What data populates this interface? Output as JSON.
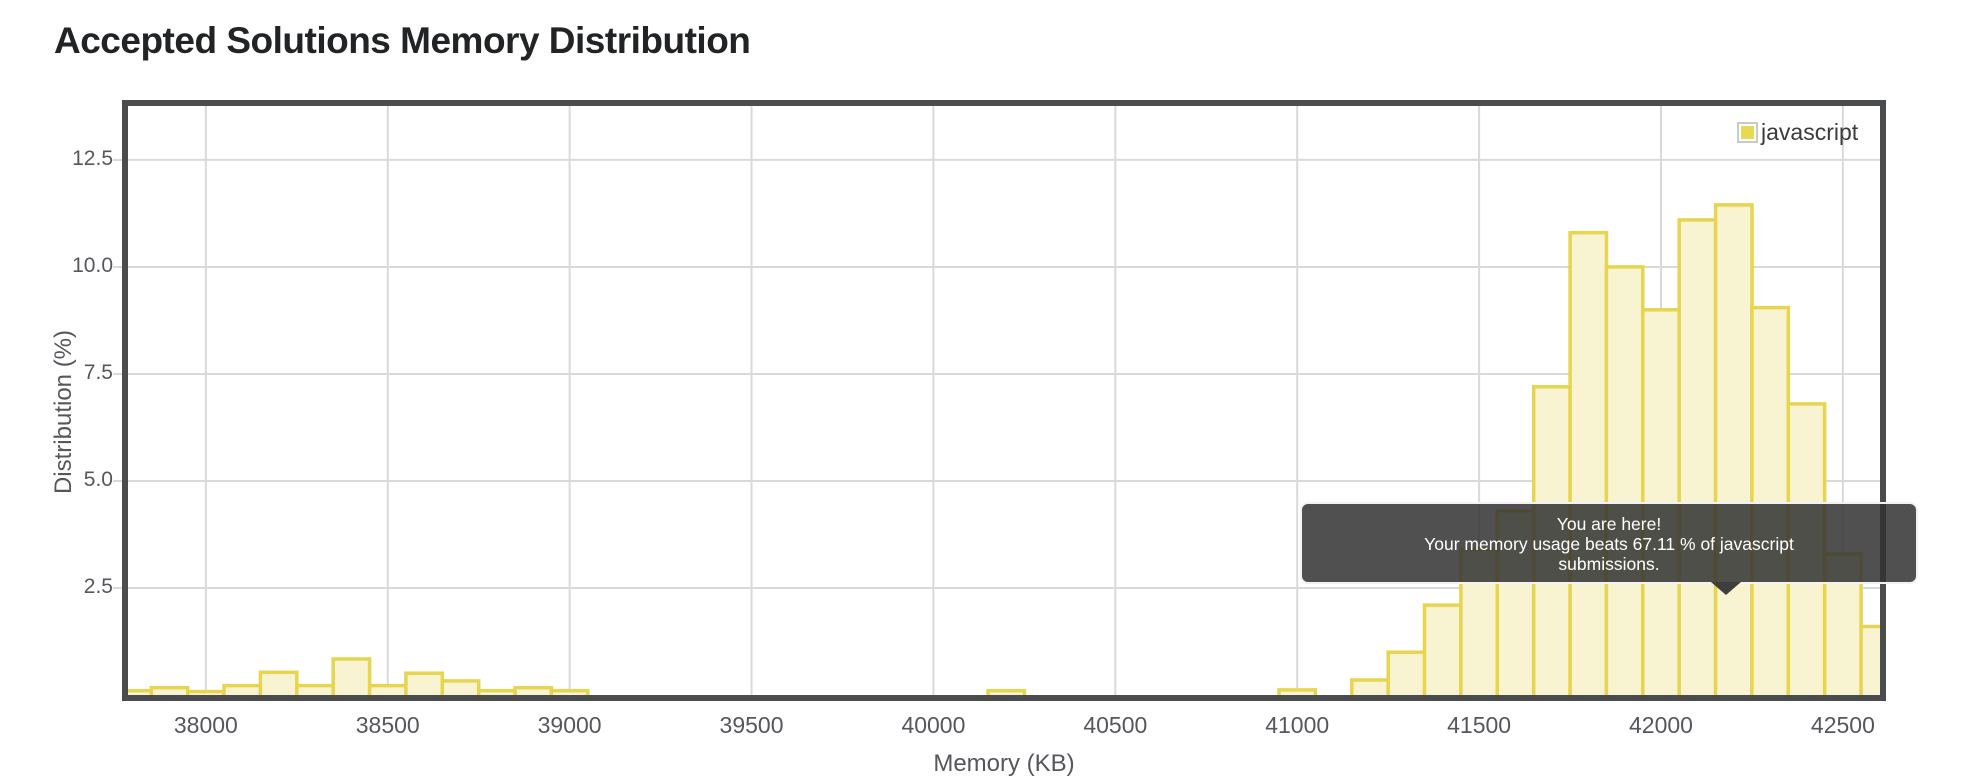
{
  "header": {
    "title": "Accepted Solutions Memory Distribution"
  },
  "legend": {
    "label": "javascript"
  },
  "tooltip": {
    "lines": [
      "You are here!",
      "Your memory usage beats 67.11 % of javascript",
      "submissions."
    ],
    "beats_percent": 67.11,
    "language": "javascript"
  },
  "colors": {
    "title_text": "#212325",
    "tick_text": "#56575b",
    "grid": "#d9d9d9",
    "axis_border": "#4b4c4e",
    "bar_fill": "#f8f4d1",
    "bar_stroke": "#e7d44f",
    "legend_swatch": "#e8d955",
    "tooltip_bg": "rgba(49,49,49,0.85)",
    "tooltip_text": "#ffffff"
  },
  "chart_data": {
    "type": "bar",
    "title": "Accepted Solutions Memory Distribution",
    "xlabel": "Memory (KB)",
    "ylabel": "Distribution (%)",
    "legend": [
      "javascript"
    ],
    "legend_position": "top-right",
    "grid": true,
    "bin_width_kb": 100,
    "x_domain": [
      37786,
      42602
    ],
    "ylim": [
      0,
      13.76
    ],
    "x_ticks": [
      38000,
      38500,
      39000,
      39500,
      40000,
      40500,
      41000,
      41500,
      42000,
      42500
    ],
    "y_ticks": [
      2.5,
      5.0,
      7.5,
      10.0,
      12.5
    ],
    "y_tick_labels": [
      "2.5",
      "5.0",
      "7.5",
      "10.0",
      "12.5"
    ],
    "series": [
      {
        "name": "javascript",
        "bins": [
          {
            "memory_kb": 37800,
            "pct": 0.1
          },
          {
            "memory_kb": 37900,
            "pct": 0.17
          },
          {
            "memory_kb": 38000,
            "pct": 0.08
          },
          {
            "memory_kb": 38100,
            "pct": 0.22
          },
          {
            "memory_kb": 38200,
            "pct": 0.53
          },
          {
            "memory_kb": 38300,
            "pct": 0.22
          },
          {
            "memory_kb": 38400,
            "pct": 0.84
          },
          {
            "memory_kb": 38500,
            "pct": 0.22
          },
          {
            "memory_kb": 38600,
            "pct": 0.51
          },
          {
            "memory_kb": 38700,
            "pct": 0.33
          },
          {
            "memory_kb": 38800,
            "pct": 0.1
          },
          {
            "memory_kb": 38900,
            "pct": 0.17
          },
          {
            "memory_kb": 39000,
            "pct": 0.1
          },
          {
            "memory_kb": 40200,
            "pct": 0.1
          },
          {
            "memory_kb": 41000,
            "pct": 0.12
          },
          {
            "memory_kb": 41200,
            "pct": 0.35
          },
          {
            "memory_kb": 41300,
            "pct": 1.0
          },
          {
            "memory_kb": 41400,
            "pct": 2.1
          },
          {
            "memory_kb": 41500,
            "pct": 3.4
          },
          {
            "memory_kb": 41600,
            "pct": 4.3
          },
          {
            "memory_kb": 41700,
            "pct": 7.2
          },
          {
            "memory_kb": 41800,
            "pct": 10.8
          },
          {
            "memory_kb": 41900,
            "pct": 10.0
          },
          {
            "memory_kb": 42000,
            "pct": 9.0
          },
          {
            "memory_kb": 42100,
            "pct": 11.1
          },
          {
            "memory_kb": 42200,
            "pct": 11.45
          },
          {
            "memory_kb": 42300,
            "pct": 9.05
          },
          {
            "memory_kb": 42400,
            "pct": 6.8
          },
          {
            "memory_kb": 42500,
            "pct": 3.3
          },
          {
            "memory_kb": 42600,
            "pct": 1.6
          }
        ]
      }
    ]
  }
}
